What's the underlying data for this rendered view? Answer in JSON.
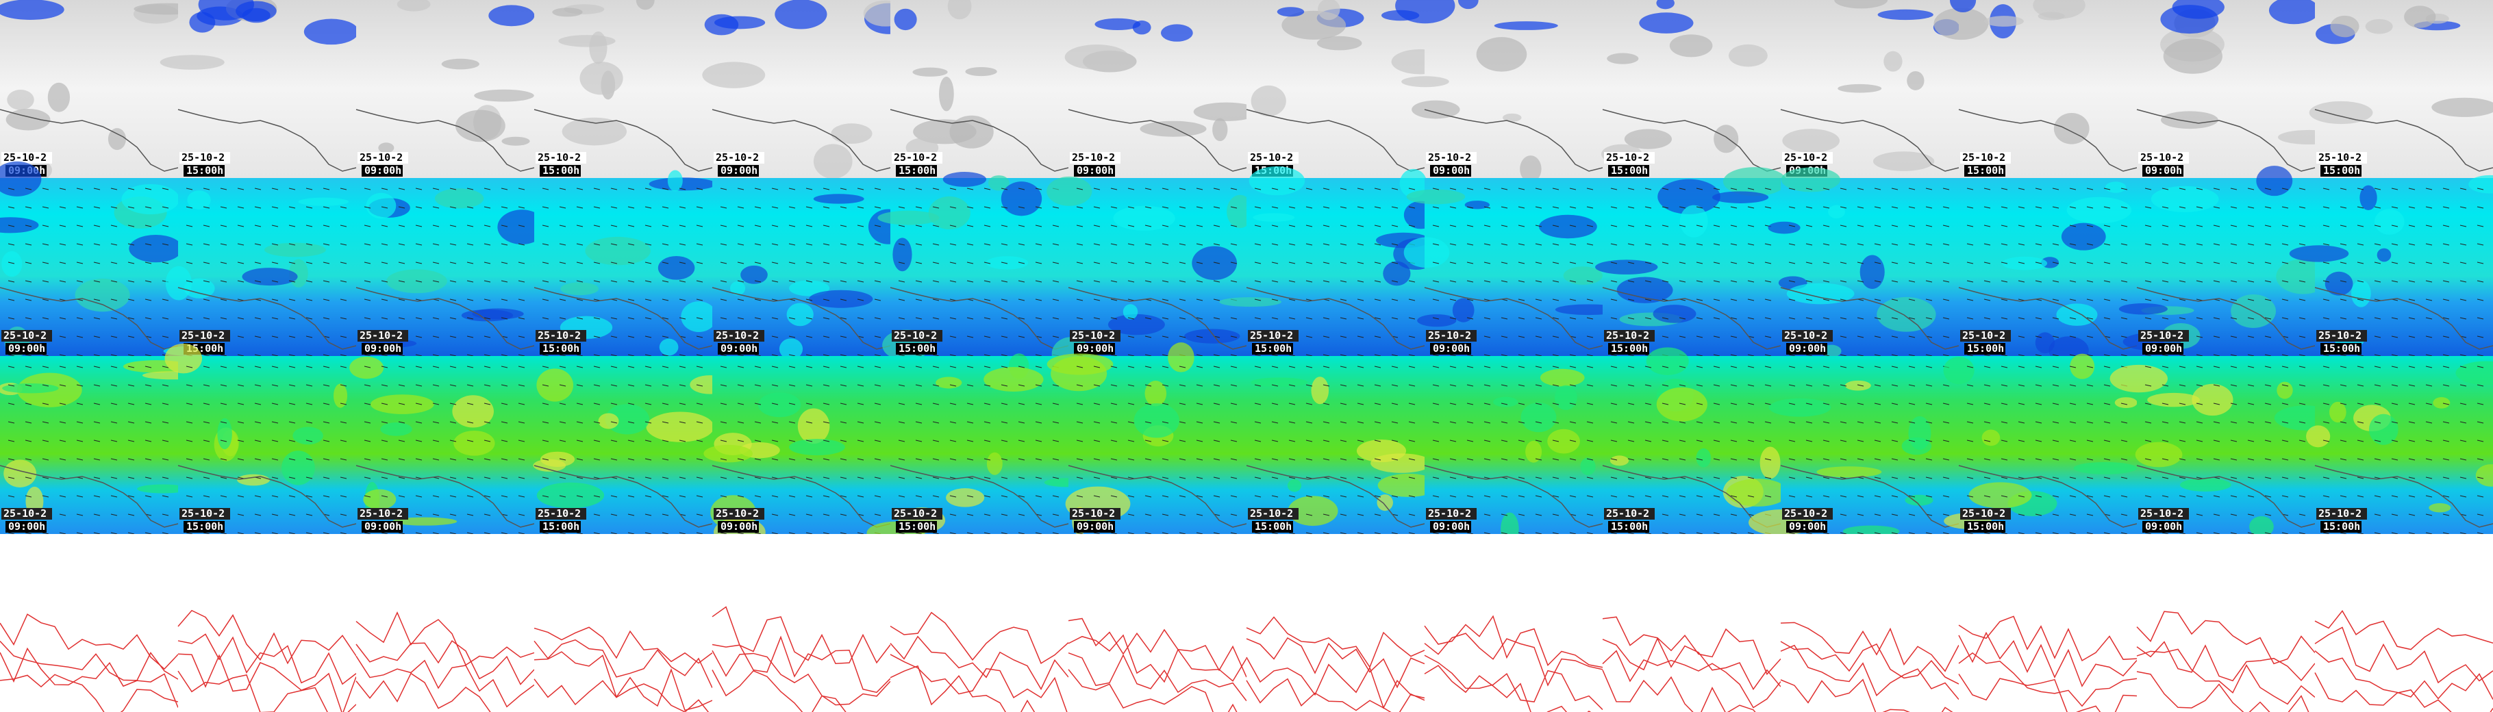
{
  "rows": [
    {
      "labels": [
        [
          "25-10-2",
          "09:00h"
        ],
        [
          "25-10-2",
          "15:00h"
        ],
        [
          "25-10-2",
          "09:00h"
        ],
        [
          "25-10-2",
          "15:00h"
        ],
        [
          "25-10-2",
          "09:00h"
        ],
        [
          "25-10-2",
          "15:00h"
        ],
        [
          "25-10-2",
          "09:00h"
        ],
        [
          "25-10-2",
          "15:00h"
        ],
        [
          "25-10-2",
          "09:00h"
        ],
        [
          "25-10-2",
          "15:00h"
        ],
        [
          "25-10-2",
          "09:00h"
        ],
        [
          "25-10-2",
          "15:00h"
        ],
        [
          "25-10-2",
          "09:00h"
        ],
        [
          "25-10-2",
          "15:00h"
        ]
      ]
    },
    {
      "labels": [
        [
          "25-10-2",
          "09:00h"
        ],
        [
          "25-10-2",
          "15:00h"
        ],
        [
          "25-10-2",
          "09:00h"
        ],
        [
          "25-10-2",
          "15:00h"
        ],
        [
          "25-10-2",
          "09:00h"
        ],
        [
          "25-10-2",
          "15:00h"
        ],
        [
          "25-10-2",
          "09:00h"
        ],
        [
          "25-10-2",
          "15:00h"
        ],
        [
          "25-10-2",
          "09:00h"
        ],
        [
          "25-10-2",
          "15:00h"
        ],
        [
          "25-10-2",
          "09:00h"
        ],
        [
          "25-10-2",
          "15:00h"
        ],
        [
          "25-10-2",
          "09:00h"
        ],
        [
          "25-10-2",
          "15:00h"
        ]
      ]
    },
    {
      "labels": [
        [
          "25-10-2",
          "09:00h"
        ],
        [
          "25-10-2",
          "15:00h"
        ],
        [
          "25-10-2",
          "09:00h"
        ],
        [
          "25-10-2",
          "15:00h"
        ],
        [
          "25-10-2",
          "09:00h"
        ],
        [
          "25-10-2",
          "15:00h"
        ],
        [
          "25-10-2",
          "09:00h"
        ],
        [
          "25-10-2",
          "15:00h"
        ],
        [
          "25-10-2",
          "09:00h"
        ],
        [
          "25-10-2",
          "15:00h"
        ],
        [
          "25-10-2",
          "09:00h"
        ],
        [
          "25-10-2",
          "15:00h"
        ],
        [
          "25-10-2",
          "09:00h"
        ],
        [
          "25-10-2",
          "15:00h"
        ]
      ]
    }
  ]
}
